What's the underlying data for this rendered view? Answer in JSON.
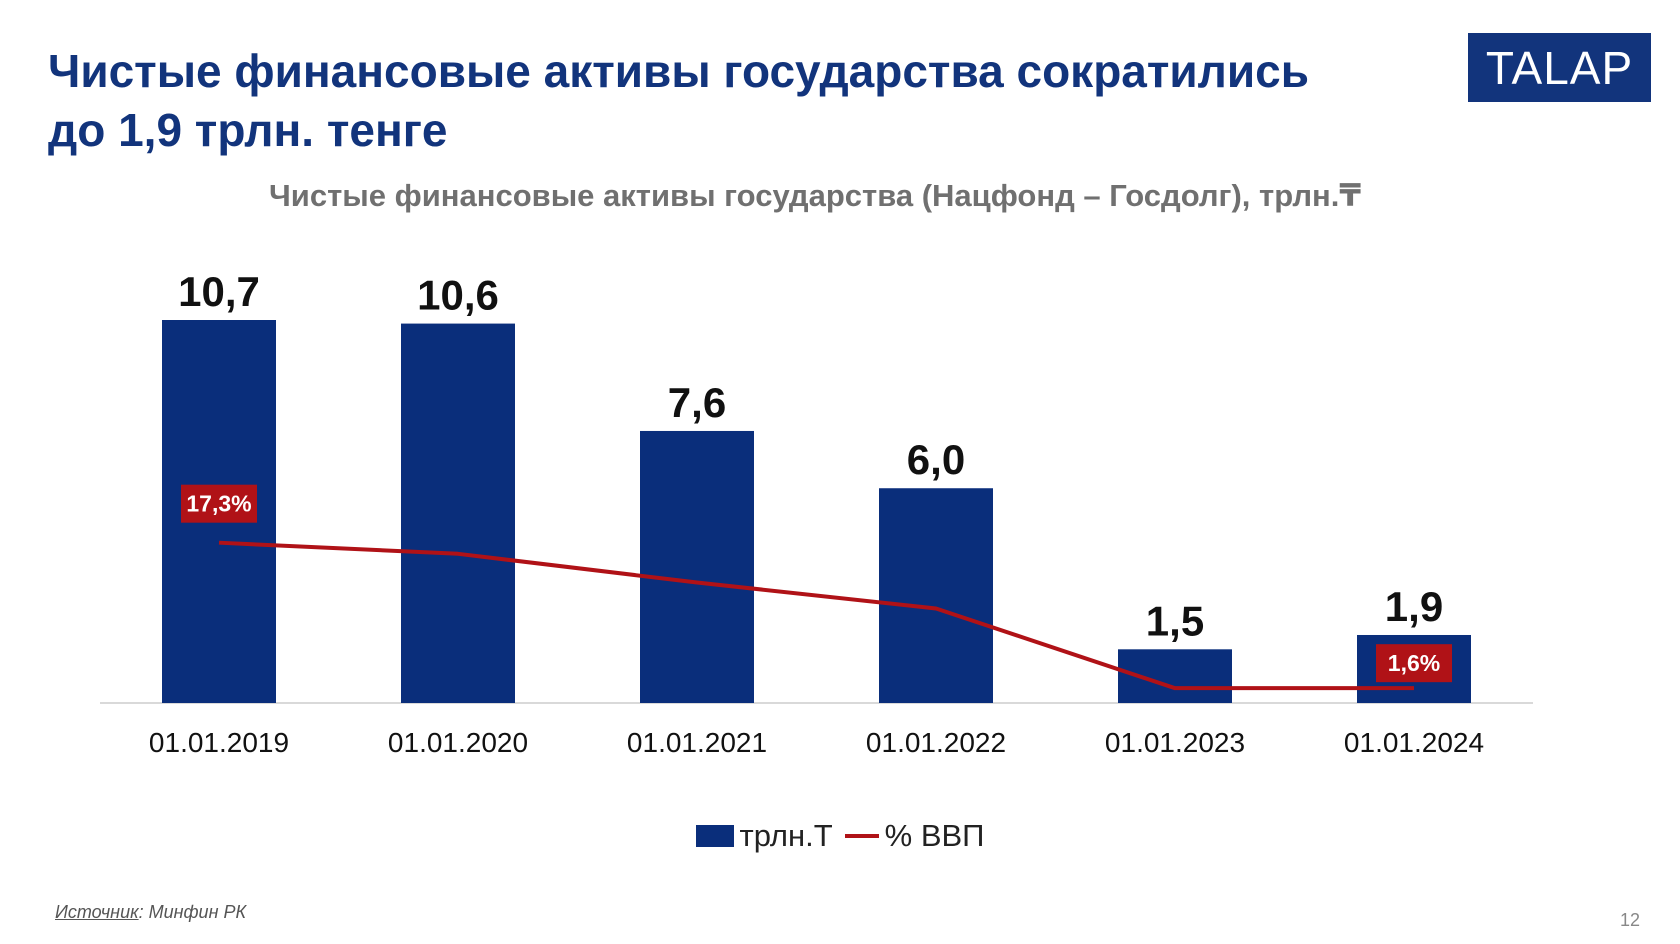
{
  "slide": {
    "headline_line1": "Чистые финансовые активы государства сократились",
    "headline_line2": "до 1,9 трлн. тенге",
    "logo_text": "TALAP",
    "source_label": "Источник",
    "source_text": ": Минфин РК",
    "page_number": "12"
  },
  "chart_data": {
    "type": "bar",
    "title": "Чистые финансовые активы государства (Нацфонд – Госдолг), трлн.₸",
    "categories": [
      "01.01.2019",
      "01.01.2020",
      "01.01.2021",
      "01.01.2022",
      "01.01.2023",
      "01.01.2024"
    ],
    "series": [
      {
        "name": "трлн.Т",
        "type": "bar",
        "color": "#0a2e7b",
        "values": [
          10.7,
          10.6,
          7.6,
          6.0,
          1.5,
          1.9
        ],
        "labels": [
          "10,7",
          "10,6",
          "7,6",
          "6,0",
          "1,5",
          "1,9"
        ]
      },
      {
        "name": "% ВВП",
        "type": "line",
        "color": "#b01217",
        "values": [
          17.3,
          16.1,
          13.0,
          10.2,
          1.6,
          1.6
        ],
        "labels": [
          "17,3%",
          "",
          "",
          "",
          "",
          "1,6%"
        ]
      }
    ],
    "xlabel": "",
    "ylabel": "",
    "ylim": [
      0,
      11.5
    ],
    "y2lim": [
      0,
      30
    ],
    "grid": false,
    "legend": "bottom-center"
  }
}
